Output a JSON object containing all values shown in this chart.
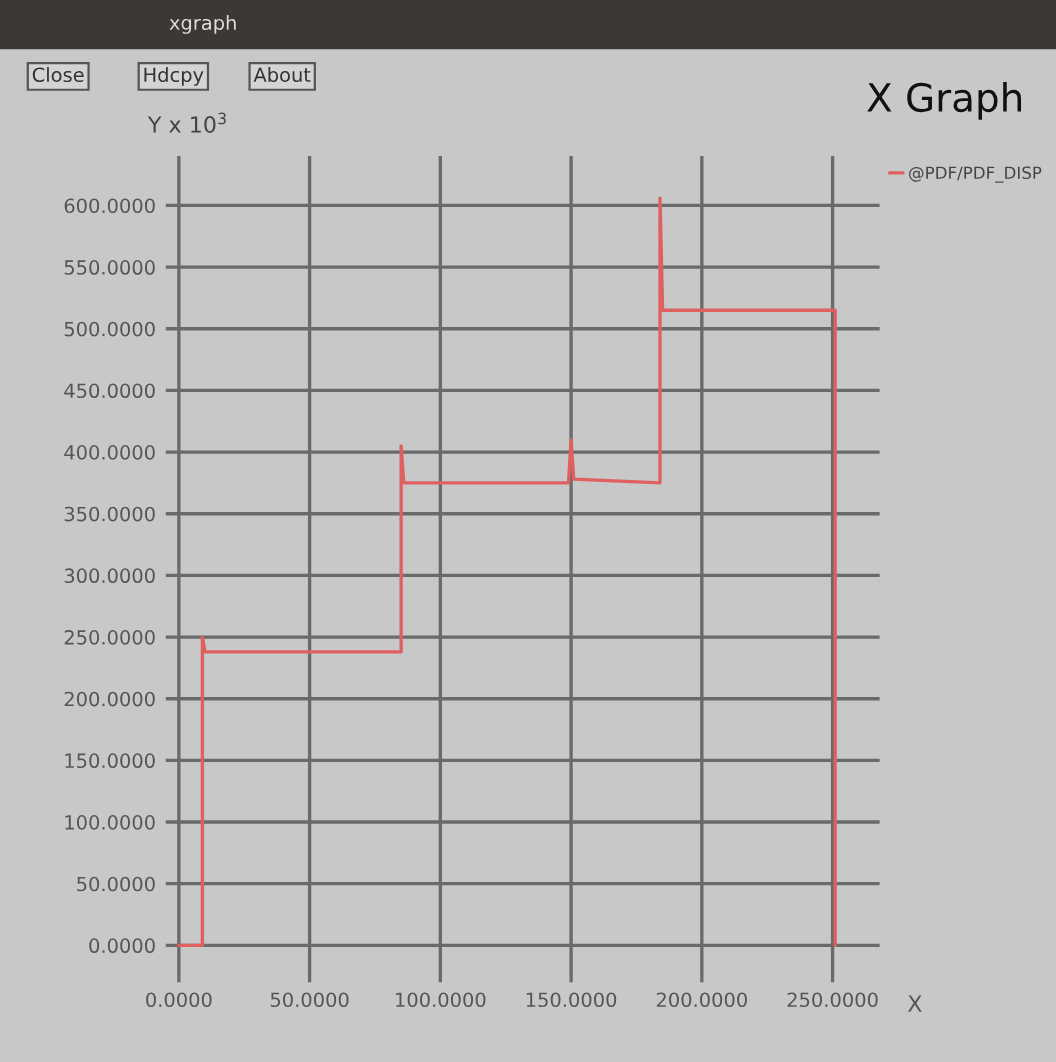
{
  "chart_data": {
    "type": "line",
    "title": "X Graph",
    "ylabel": "Y x 10$^{3}$",
    "xlabel": "X",
    "annotations": [
      "xgraph",
      "Close",
      "Hdcpy",
      "About"
    ],
    "series": [
      {
        "name": "@PDF/PDF_DISP",
        "color": "#e06060",
        "x": [
          0,
          9,
          9,
          10,
          85,
          85,
          86,
          149,
          150,
          151,
          184,
          184,
          185,
          251,
          251
        ],
        "values": [
          0,
          0,
          250,
          238,
          238,
          405,
          375,
          375,
          410,
          378,
          375,
          606,
          515,
          515,
          0
        ]
      }
    ],
    "xlim": [
      -5,
      268
    ],
    "ylim": [
      -30,
      640
    ],
    "xticks": [
      {
        "value": 0,
        "label": "0.0000"
      },
      {
        "value": 50,
        "label": "50.0000"
      },
      {
        "value": 100,
        "label": "100.0000"
      },
      {
        "value": 150,
        "label": "150.0000"
      },
      {
        "value": 200,
        "label": "200.0000"
      },
      {
        "value": 250,
        "label": "250.0000"
      }
    ],
    "yticks": [
      {
        "value": 0,
        "label": "0.0000"
      },
      {
        "value": 50,
        "label": "50.0000"
      },
      {
        "value": 100,
        "label": "100.0000"
      },
      {
        "value": 150,
        "label": "150.0000"
      },
      {
        "value": 200,
        "label": "200.0000"
      },
      {
        "value": 250,
        "label": "250.0000"
      },
      {
        "value": 300,
        "label": "300.0000"
      },
      {
        "value": 350,
        "label": "350.0000"
      },
      {
        "value": 400,
        "label": "400.0000"
      },
      {
        "value": 450,
        "label": "450.0000"
      },
      {
        "value": 500,
        "label": "500.0000"
      },
      {
        "value": 550,
        "label": "550.0000"
      },
      {
        "value": 600,
        "label": "600.0000"
      }
    ],
    "grid": true,
    "legend": "top right",
    "marker": "none",
    "line_style": "solid"
  }
}
